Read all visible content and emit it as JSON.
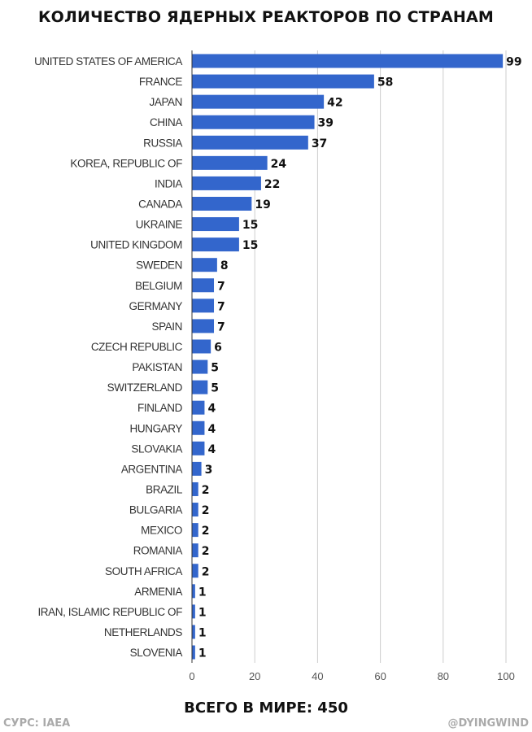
{
  "chart_data": {
    "type": "bar",
    "orientation": "horizontal",
    "title": "КОЛИЧЕСТВО ЯДЕРНЫХ РЕАКТОРОВ ПО СТРАНАМ",
    "categories": [
      "UNITED STATES OF AMERICA",
      "FRANCE",
      "JAPAN",
      "CHINA",
      "RUSSIA",
      "KOREA, REPUBLIC OF",
      "INDIA",
      "CANADA",
      "UKRAINE",
      "UNITED KINGDOM",
      "SWEDEN",
      "BELGIUM",
      "GERMANY",
      "SPAIN",
      "CZECH REPUBLIC",
      "PAKISTAN",
      "SWITZERLAND",
      "FINLAND",
      "HUNGARY",
      "SLOVAKIA",
      "ARGENTINA",
      "BRAZIL",
      "BULGARIA",
      "MEXICO",
      "ROMANIA",
      "SOUTH AFRICA",
      "ARMENIA",
      "IRAN, ISLAMIC REPUBLIC OF",
      "NETHERLANDS",
      "SLOVENIA"
    ],
    "values": [
      99,
      58,
      42,
      39,
      37,
      24,
      22,
      19,
      15,
      15,
      8,
      7,
      7,
      7,
      6,
      5,
      5,
      4,
      4,
      4,
      3,
      2,
      2,
      2,
      2,
      2,
      1,
      1,
      1,
      1
    ],
    "xlim": [
      0,
      100
    ],
    "xticks": [
      "0",
      "20",
      "40",
      "60",
      "80",
      "100"
    ],
    "grid": true,
    "bar_color": "#3366cc",
    "xlabel": "",
    "ylabel": ""
  },
  "footer": {
    "total": "ВСЕГО В МИРЕ: 450",
    "source": "СУРС: IAEA",
    "credit": "@DYINGWIND"
  }
}
